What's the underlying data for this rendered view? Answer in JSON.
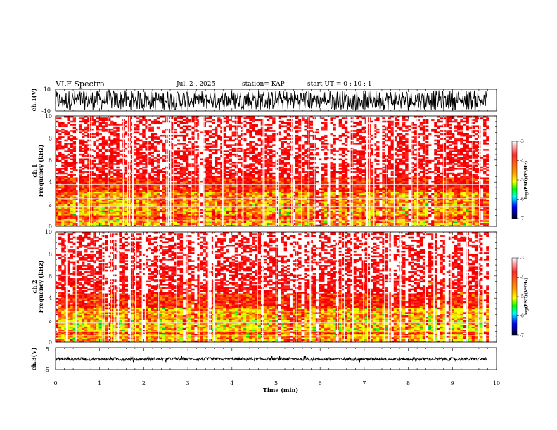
{
  "header": {
    "title": "VLF Spectra",
    "date": "Jul. 2 , 2025",
    "station": "station= KAP",
    "start_ut": "start UT = 0 : 10 : 1"
  },
  "chart_data": [
    {
      "type": "line",
      "name": "ch1-waveform",
      "ylabel": "ch.1(V)",
      "ylim": [
        -10,
        10
      ],
      "yticks": [
        "10",
        "-10"
      ],
      "xlim": [
        0,
        10
      ],
      "grid": false
    },
    {
      "type": "heatmap",
      "name": "ch1-spectrogram",
      "ylabel": "ch.1 Frequency (kHz)",
      "ylabel_line1": "ch.1",
      "ylabel_line2": "Frequency (kHz)",
      "ylim": [
        0,
        10
      ],
      "yticks": [
        "0",
        "2",
        "4",
        "6",
        "8",
        "10"
      ],
      "xlim": [
        0,
        9.83
      ],
      "colorbar": {
        "label": "log(PSD)(V²/Hz)",
        "ticks": [
          "-3",
          "-4",
          "-5",
          "-6",
          "-7"
        ],
        "range": [
          -7,
          -3
        ]
      },
      "bands_khz": [
        [
          0.8,
          3.2
        ],
        [
          3.2,
          4.5
        ]
      ],
      "lines_khz": [
        0.3,
        0.5,
        1.8,
        2.2,
        2.5,
        3.8
      ]
    },
    {
      "type": "heatmap",
      "name": "ch2-spectrogram",
      "ylabel": "ch.2 Frequency (kHz)",
      "ylabel_line1": "ch.2",
      "ylabel_line2": "Frequency (kHz)",
      "ylim": [
        0,
        10
      ],
      "yticks": [
        "0",
        "2",
        "4",
        "6",
        "8",
        "10"
      ],
      "xlim": [
        0,
        9.83
      ],
      "colorbar": {
        "label": "log(PSD)(V²/Hz)",
        "ticks": [
          "-3",
          "-4",
          "-5",
          "-6",
          "-7"
        ],
        "range": [
          -7,
          -3
        ]
      },
      "bands_khz": [
        [
          0.8,
          3.2
        ],
        [
          3.2,
          4.5
        ]
      ],
      "lines_khz": [
        0.6,
        1.0,
        1.8,
        2.8
      ]
    },
    {
      "type": "line",
      "name": "ch3-waveform",
      "ylabel": "ch.3(V)",
      "ylim": [
        -5,
        5
      ],
      "yticks": [
        "5",
        "-5"
      ],
      "xlim": [
        0,
        10
      ],
      "grid": false
    }
  ],
  "xaxis": {
    "label": "Time (min)",
    "ticks": [
      "0",
      "1",
      "2",
      "3",
      "4",
      "5",
      "6",
      "7",
      "8",
      "9",
      "10"
    ],
    "range": [
      0,
      10
    ]
  },
  "colors": {
    "high": "#ff0000",
    "mid": "#ffff00",
    "low": "#00ff00",
    "lower": "#00ffff",
    "lowest": "#0000ff",
    "min": "#000000"
  }
}
